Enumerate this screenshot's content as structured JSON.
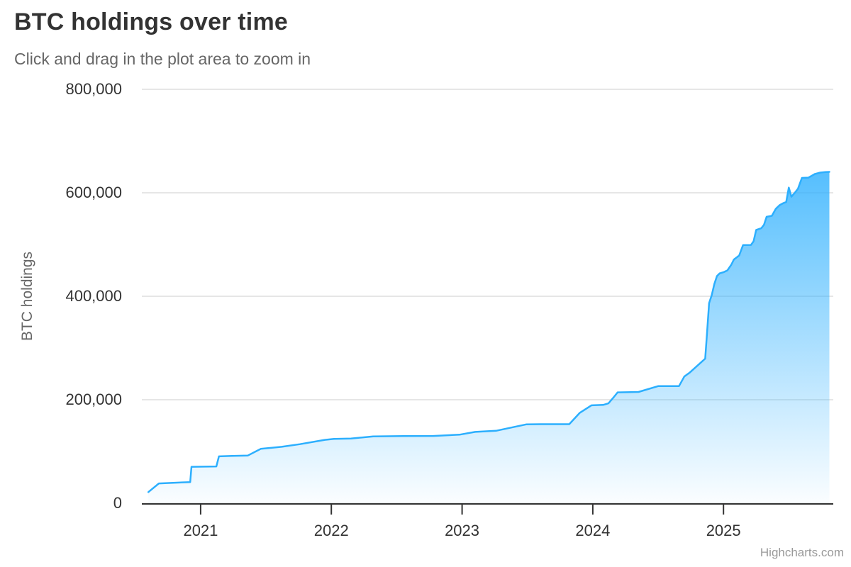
{
  "header": {
    "title": "BTC holdings over time",
    "subtitle": "Click and drag in the plot area to zoom in"
  },
  "credits": {
    "label": "Highcharts.com"
  },
  "colors": {
    "series_line": "#2caffe",
    "area_gradient_top": "rgba(44,175,254,1)",
    "area_gradient_bottom": "rgba(44,175,254,0.02)",
    "gridline": "#e6e6e6",
    "axis_line": "#333333",
    "title_text": "#333333",
    "subtitle_text": "#666666",
    "axis_label_text": "#333333",
    "credits_text": "#999999"
  },
  "chart_data": {
    "type": "area",
    "title": "BTC holdings over time",
    "subtitle": "Click and drag in the plot area to zoom in",
    "xlabel": "",
    "ylabel": "BTC holdings",
    "xlim": [
      2020.55,
      2025.84
    ],
    "ylim": [
      0,
      800000
    ],
    "grid": "horizontal",
    "legend": "none",
    "line_color": "#2caffe",
    "yticks": [
      {
        "value": 0,
        "label": "0"
      },
      {
        "value": 200000,
        "label": "200,000"
      },
      {
        "value": 400000,
        "label": "400,000"
      },
      {
        "value": 600000,
        "label": "600,000"
      },
      {
        "value": 800000,
        "label": "800,000"
      }
    ],
    "xticks": [
      {
        "value": 2021,
        "label": "2021"
      },
      {
        "value": 2022,
        "label": "2022"
      },
      {
        "value": 2023,
        "label": "2023"
      },
      {
        "value": 2024,
        "label": "2024"
      },
      {
        "value": 2025,
        "label": "2025"
      }
    ],
    "series": [
      {
        "name": "BTC holdings",
        "points": [
          [
            2020.6,
            21454
          ],
          [
            2020.68,
            38250
          ],
          [
            2020.92,
            40824
          ],
          [
            2020.93,
            70470
          ],
          [
            2021.12,
            71079
          ],
          [
            2021.14,
            90531
          ],
          [
            2021.24,
            91326
          ],
          [
            2021.36,
            92079
          ],
          [
            2021.46,
            105085
          ],
          [
            2021.62,
            108992
          ],
          [
            2021.76,
            114042
          ],
          [
            2021.95,
            122478
          ],
          [
            2022.02,
            124391
          ],
          [
            2022.15,
            125051
          ],
          [
            2022.32,
            129218
          ],
          [
            2022.55,
            129699
          ],
          [
            2022.78,
            130000
          ],
          [
            2022.98,
            132500
          ],
          [
            2023.1,
            137851
          ],
          [
            2023.26,
            140000
          ],
          [
            2023.49,
            152333
          ],
          [
            2023.6,
            152800
          ],
          [
            2023.82,
            152800
          ],
          [
            2023.9,
            174530
          ],
          [
            2023.99,
            189150
          ],
          [
            2024.08,
            190000
          ],
          [
            2024.12,
            193000
          ],
          [
            2024.16,
            205000
          ],
          [
            2024.19,
            214246
          ],
          [
            2024.35,
            215000
          ],
          [
            2024.5,
            226331
          ],
          [
            2024.66,
            226500
          ],
          [
            2024.7,
            244800
          ],
          [
            2024.74,
            252220
          ],
          [
            2024.86,
            279420
          ],
          [
            2024.875,
            331200
          ],
          [
            2024.89,
            386700
          ],
          [
            2024.91,
            402100
          ],
          [
            2024.93,
            423650
          ],
          [
            2024.95,
            439000
          ],
          [
            2024.97,
            444262
          ],
          [
            2025.0,
            446400
          ],
          [
            2025.03,
            450000
          ],
          [
            2025.06,
            461000
          ],
          [
            2025.08,
            471107
          ],
          [
            2025.12,
            478740
          ],
          [
            2025.15,
            499096
          ],
          [
            2025.21,
            499226
          ],
          [
            2025.23,
            506137
          ],
          [
            2025.25,
            528185
          ],
          [
            2025.29,
            531644
          ],
          [
            2025.31,
            538200
          ],
          [
            2025.33,
            553555
          ],
          [
            2025.37,
            555450
          ],
          [
            2025.4,
            568840
          ],
          [
            2025.43,
            576230
          ],
          [
            2025.46,
            580250
          ],
          [
            2025.48,
            582000
          ],
          [
            2025.5,
            610000
          ],
          [
            2025.52,
            592345
          ],
          [
            2025.55,
            601550
          ],
          [
            2025.57,
            607770
          ],
          [
            2025.6,
            628791
          ],
          [
            2025.65,
            629376
          ],
          [
            2025.7,
            636505
          ],
          [
            2025.74,
            638985
          ],
          [
            2025.78,
            640031
          ],
          [
            2025.81,
            640418
          ]
        ]
      }
    ]
  }
}
